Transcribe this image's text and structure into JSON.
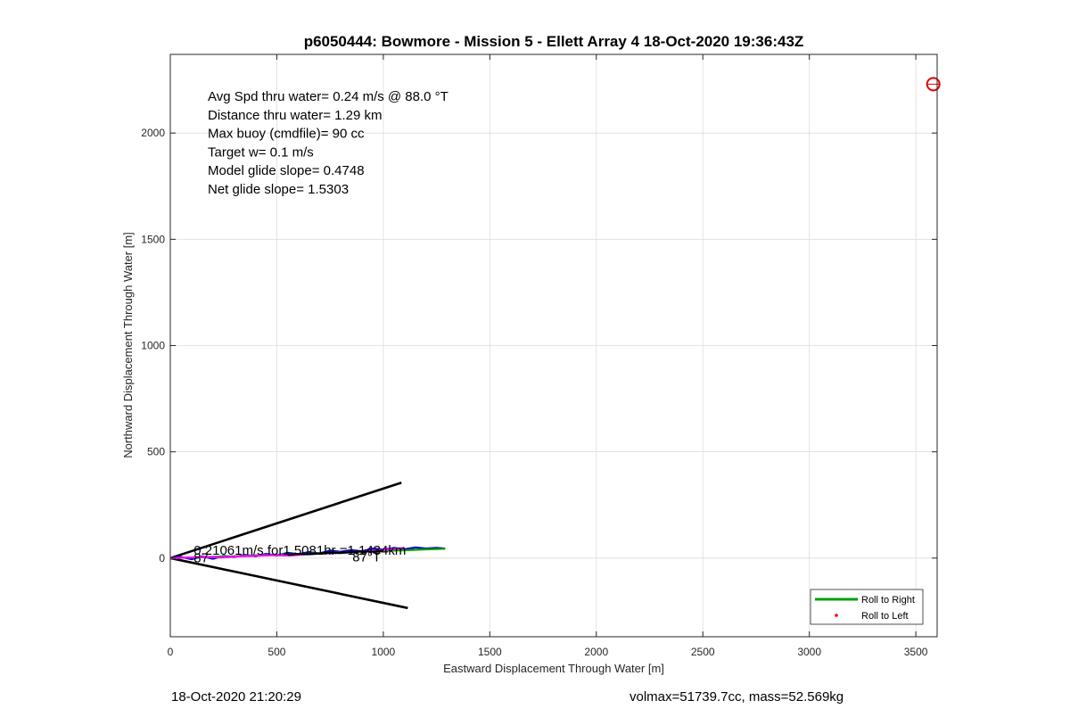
{
  "chart_data": {
    "type": "line",
    "title": "p6050444: Bowmore - Mission 5 - Ellett Array 4 18-Oct-2020 19:36:43Z",
    "xlabel": "Eastward Displacement Through Water [m]",
    "ylabel": "Northward Displacement Through Water [m]",
    "xlim": [
      0,
      3600
    ],
    "ylim": [
      -370,
      2370
    ],
    "xticks": [
      0,
      500,
      1000,
      1500,
      2000,
      2500,
      3000,
      3500
    ],
    "yticks": [
      0,
      500,
      1000,
      1500,
      2000
    ],
    "grid": true,
    "legend_position": "bottom-right",
    "legend": [
      {
        "label": "Roll to Right",
        "color": "#00a000",
        "marker": "line"
      },
      {
        "label": "Roll to Left",
        "color": "#ff0000",
        "marker": "dot"
      }
    ],
    "stats_lines": [
      "Avg Spd thru water=  0.24 m/s @  88.0 °T",
      "Distance thru water=  1.29 km",
      "Max buoy (cmdfile)= 90 cc",
      "Target w= 0.1 m/s",
      "Model glide slope= 0.4748",
      "Net glide slope= 1.5303"
    ],
    "annotations": [
      {
        "text": "0.21061m/s for1.5081hr =1.1434km",
        "x": 110,
        "y": 15
      },
      {
        "text": "87°T",
        "x": 855,
        "y": -15
      },
      {
        "text": "87",
        "x": 110,
        "y": -20
      }
    ],
    "cone_lines": [
      {
        "x": [
          0,
          1085
        ],
        "y": [
          0,
          355
        ]
      },
      {
        "x": [
          0,
          1115
        ],
        "y": [
          0,
          -235
        ]
      }
    ],
    "series": [
      {
        "name": "Roll to Right",
        "color": "#0000cc",
        "x": [
          0,
          50,
          100,
          150,
          200,
          250,
          300,
          350,
          400,
          450,
          500,
          550,
          600,
          650,
          700,
          750,
          800,
          850,
          900,
          950,
          1000,
          1050,
          1100,
          1150,
          1200,
          1250,
          1290
        ],
        "y": [
          0,
          5,
          -5,
          8,
          -3,
          10,
          5,
          15,
          8,
          20,
          12,
          25,
          18,
          28,
          22,
          35,
          30,
          38,
          32,
          45,
          40,
          48,
          42,
          50,
          45,
          48,
          45
        ]
      },
      {
        "name": "Roll to Right",
        "color": "#00a000",
        "x": [
          0,
          100,
          200,
          300,
          400,
          500,
          600,
          700,
          800,
          900,
          1000,
          1100,
          1200,
          1290
        ],
        "y": [
          0,
          3,
          6,
          9,
          13,
          16,
          19,
          23,
          26,
          30,
          34,
          37,
          41,
          44
        ]
      },
      {
        "name": "Roll to Left",
        "color": "#ff00ff",
        "x": [
          0,
          80,
          160,
          240,
          320,
          400,
          480,
          560,
          640,
          720,
          800,
          880,
          960,
          1040,
          1100
        ],
        "y": [
          0,
          2,
          5,
          3,
          8,
          10,
          14,
          12,
          18,
          22,
          25,
          30,
          35,
          42,
          48
        ]
      },
      {
        "name": "Roll to Left",
        "color": "#000000",
        "x": [
          550,
          600,
          650,
          700,
          750,
          800,
          850,
          900,
          950,
          1000
        ],
        "y": [
          15,
          20,
          18,
          22,
          25,
          24,
          28,
          32,
          30,
          35
        ]
      }
    ],
    "target_marker": {
      "x": 3582,
      "y": 2230,
      "color": "#e00000"
    }
  },
  "footer": {
    "timestamp": "18-Oct-2020 21:20:29",
    "mass_info": "volmax=51739.7cc, mass=52.569kg"
  }
}
